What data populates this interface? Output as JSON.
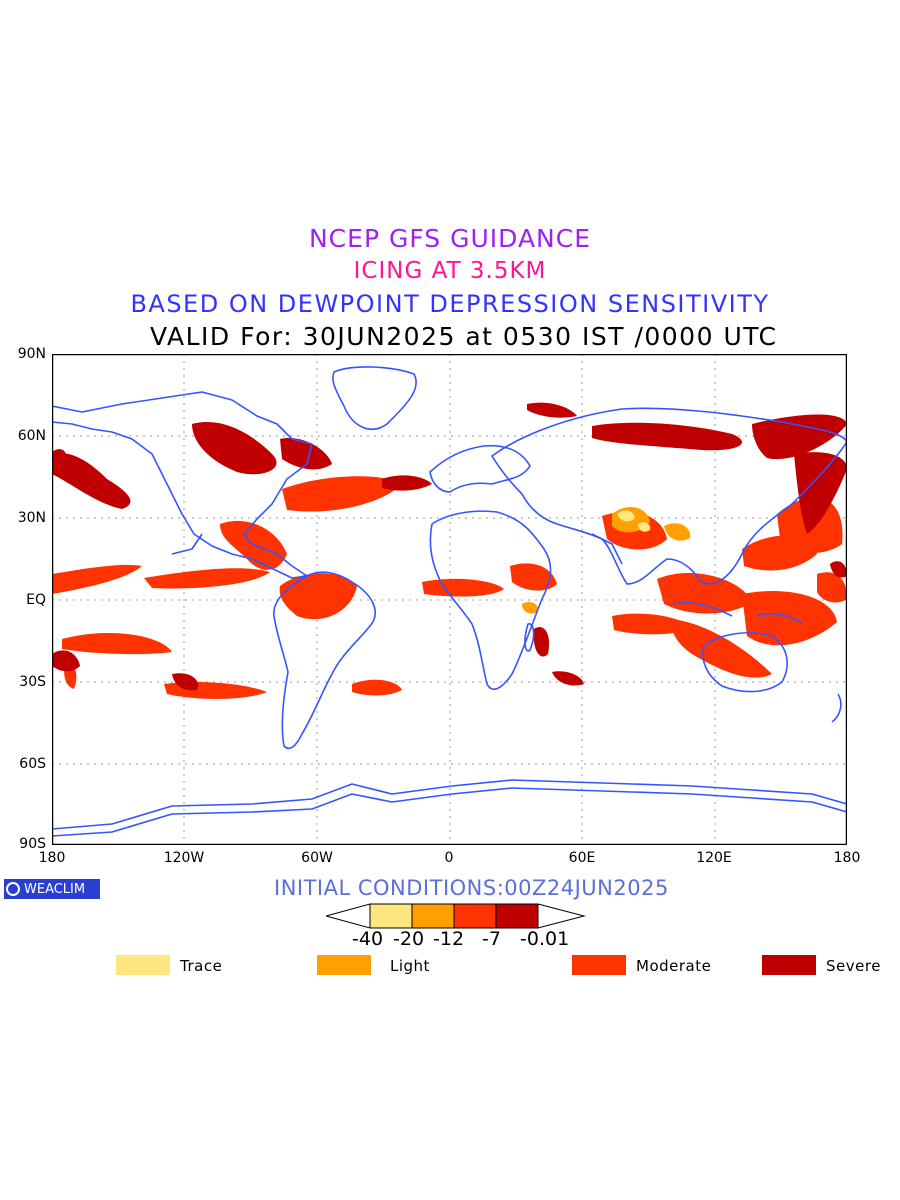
{
  "titles": {
    "line1": "NCEP GFS GUIDANCE",
    "line2": "ICING AT 3.5KM",
    "line3": "BASED ON DEWPOINT DEPRESSION SENSITIVITY",
    "line4": "VALID For: 30JUN2025 at 0530 IST /0000 UTC"
  },
  "axes": {
    "lat_labels": [
      "90N",
      "60N",
      "30N",
      "EQ",
      "30S",
      "60S",
      "90S"
    ],
    "lon_labels": [
      "180",
      "120W",
      "60W",
      "0",
      "60E",
      "120E",
      "180"
    ]
  },
  "brand": {
    "label": "WEACLIM"
  },
  "initial_conditions": "INITIAL CONDITIONS:00Z24JUN2025",
  "colorbar": {
    "ticks": [
      "-40",
      "-20",
      "-12",
      "-7",
      "-0.01"
    ],
    "colors": [
      "#ffe680",
      "#ffa000",
      "#ff3300",
      "#c00000"
    ]
  },
  "legend": [
    {
      "label": "Trace",
      "color": "#ffe680"
    },
    {
      "label": "Light",
      "color": "#ffa000"
    },
    {
      "label": "Moderate",
      "color": "#ff3300"
    },
    {
      "label": "Severe",
      "color": "#c00000"
    }
  ],
  "colors": {
    "coastline": "#3355ff",
    "grid": "#9a9a9a"
  }
}
